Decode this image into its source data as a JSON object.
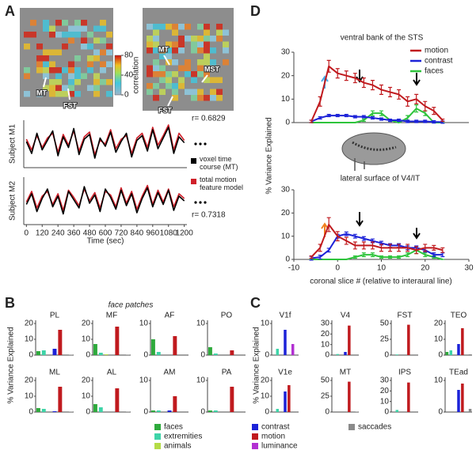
{
  "panel_labels": [
    "A",
    "D",
    "B",
    "C"
  ],
  "brain_labels": [
    "MT",
    "FST",
    "MT",
    "MST",
    "FST"
  ],
  "colorbar": {
    "label": "correlation",
    "lim": [
      0,
      80
    ],
    "ticks": [
      0,
      40,
      80
    ]
  },
  "face_patches_title": "face patches",
  "b_ylabel": "% Variance Explained",
  "c_ylabel": "% Variance Explained",
  "legend": {
    "items": [
      {
        "name": "faces",
        "color": "#2eaa3c"
      },
      {
        "name": "extremities",
        "color": "#3ed4a8"
      },
      {
        "name": "animals",
        "color": "#b4dc46"
      },
      {
        "name": "contrast",
        "color": "#1c22d8"
      },
      {
        "name": "motion",
        "color": "#c01a1e"
      },
      {
        "name": "luminance",
        "color": "#b230d2"
      },
      {
        "name": "saccades",
        "color": "#8a8a8a"
      }
    ]
  },
  "chart_data": [
    {
      "type": "line",
      "ylabel": "Subject M1",
      "annotation": "r= 0.6829",
      "xlim": [
        -20,
        1220
      ],
      "ylim": [
        -2,
        2
      ],
      "x": [
        0,
        40,
        80,
        120,
        160,
        200,
        240,
        280,
        320,
        360,
        400,
        440,
        480,
        520,
        560,
        600,
        640,
        680,
        720,
        760,
        800,
        840,
        880,
        920,
        960,
        1000,
        1040,
        1080,
        1120,
        1160,
        1200
      ],
      "series": [
        {
          "name": "voxel time course (MT)",
          "color": "#000000",
          "values": [
            0.2,
            -0.8,
            0.9,
            -0.5,
            0.3,
            1.1,
            -1.0,
            0.6,
            -0.3,
            1.3,
            -0.9,
            0.4,
            0.8,
            -1.2,
            0.5,
            -0.2,
            1.0,
            -0.7,
            0.2,
            0.9,
            -1.1,
            0.3,
            0.7,
            -0.6,
            1.2,
            -0.4,
            0.5,
            1.4,
            -0.8,
            0.6,
            0.1
          ]
        },
        {
          "name": "total motion feature model",
          "color": "#d0202a",
          "values": [
            0.4,
            -0.5,
            0.7,
            -0.3,
            0.5,
            0.9,
            -0.7,
            0.8,
            -0.1,
            1.1,
            -0.6,
            0.6,
            1.0,
            -0.9,
            0.3,
            0.0,
            1.2,
            -0.4,
            0.4,
            0.7,
            -0.8,
            0.5,
            0.9,
            -0.3,
            1.4,
            -0.1,
            0.7,
            1.6,
            -0.5,
            0.9,
            0.3
          ]
        }
      ]
    },
    {
      "type": "line",
      "ylabel": "Subject M2",
      "annotation": "r= 0.7318",
      "xlabel": "Time (sec)",
      "xlim": [
        -20,
        1220
      ],
      "ylim": [
        -2,
        2
      ],
      "xticks": [
        0,
        120,
        240,
        360,
        480,
        600,
        720,
        840,
        960,
        1080,
        1200
      ],
      "x": [
        0,
        40,
        80,
        120,
        160,
        200,
        240,
        280,
        320,
        360,
        400,
        440,
        480,
        520,
        560,
        600,
        640,
        680,
        720,
        760,
        800,
        840,
        880,
        920,
        960,
        1000,
        1040,
        1080,
        1120,
        1160,
        1200
      ],
      "series": [
        {
          "color": "#000000",
          "values": [
            -0.3,
            0.6,
            -0.9,
            0.2,
            1.0,
            -0.5,
            0.4,
            -1.1,
            0.8,
            0.1,
            -0.6,
            1.2,
            -0.2,
            0.5,
            -0.9,
            1.0,
            0.3,
            -0.7,
            0.9,
            -0.4,
            0.6,
            -1.0,
            0.2,
            1.1,
            -0.5,
            0.7,
            -0.3,
            0.9,
            -0.8,
            0.4,
            0.0
          ]
        },
        {
          "color": "#d0202a",
          "values": [
            -0.1,
            0.8,
            -0.6,
            0.4,
            0.8,
            -0.3,
            0.6,
            -0.8,
            0.9,
            0.3,
            -0.4,
            1.0,
            0.0,
            0.7,
            -0.6,
            0.8,
            0.5,
            -0.5,
            1.1,
            -0.2,
            0.8,
            -0.7,
            0.4,
            1.3,
            -0.3,
            0.9,
            -0.1,
            1.0,
            -0.5,
            0.6,
            0.2
          ]
        }
      ]
    },
    {
      "type": "line",
      "title": "ventral bank of the STS",
      "ylabel": "% Variance Explained",
      "legend": "upper right",
      "xlim": [
        -10,
        30
      ],
      "ylim": [
        0,
        30
      ],
      "yticks": [
        0,
        10,
        20,
        30
      ],
      "x": [
        -6,
        -4,
        -2,
        0,
        2,
        4,
        6,
        8,
        10,
        12,
        14,
        16,
        18,
        20,
        22,
        24
      ],
      "series": [
        {
          "name": "motion",
          "color": "#c01a1e",
          "values": [
            0.5,
            9,
            24,
            21,
            20,
            19,
            17,
            16,
            14,
            13,
            12,
            9,
            10,
            7,
            5,
            1
          ],
          "errors": [
            0.5,
            2,
            2.5,
            2,
            2,
            2,
            2,
            2,
            2,
            2,
            2,
            2,
            2,
            2,
            1.5,
            0.5
          ]
        },
        {
          "name": "contrast",
          "color": "#1c22d8",
          "values": [
            0.5,
            2,
            3,
            3,
            3,
            2.5,
            2.5,
            2,
            1.5,
            1,
            1,
            0.5,
            0.5,
            0.5,
            0.3,
            0.2
          ],
          "errors": [
            0.5,
            0.5,
            0.5,
            0.5,
            0.5,
            0.5,
            0.5,
            0.5,
            0.5,
            0.5,
            0.5,
            0.5,
            0.5,
            0.5,
            0.5,
            0.5
          ]
        },
        {
          "name": "faces",
          "color": "#2ec43c",
          "values": [
            0,
            0,
            0,
            0,
            0,
            0,
            1,
            4,
            4,
            1,
            0,
            2,
            6,
            4,
            0,
            0
          ],
          "errors": [
            0,
            0,
            0,
            0,
            0,
            0,
            0.5,
            1,
            1,
            0.5,
            0,
            1,
            1.5,
            1,
            0,
            0
          ]
        }
      ]
    },
    {
      "type": "line",
      "title": "lateral surface of V4/IT",
      "xlabel": "coronal slice # (relative to interaural line)",
      "xlim": [
        -10,
        30
      ],
      "ylim": [
        0,
        30
      ],
      "yticks": [
        0,
        10,
        20,
        30
      ],
      "xticks": [
        -10,
        0,
        10,
        20,
        30
      ],
      "x": [
        -6,
        -4,
        -2,
        0,
        2,
        4,
        6,
        8,
        10,
        12,
        14,
        16,
        18,
        20,
        22,
        24
      ],
      "series": [
        {
          "color": "#c01a1e",
          "values": [
            1,
            5,
            15,
            10,
            8,
            6,
            6,
            6,
            5,
            5,
            5,
            5,
            4,
            5,
            5,
            4
          ],
          "errors": [
            0.5,
            1.5,
            3,
            2,
            1.5,
            1.5,
            1.5,
            1.5,
            1.5,
            1.5,
            1.5,
            1.5,
            1.5,
            1.5,
            1,
            1
          ]
        },
        {
          "color": "#1c22d8",
          "values": [
            0.5,
            1,
            4,
            10,
            11,
            10,
            9,
            8,
            7,
            6,
            6,
            5,
            5,
            4,
            2,
            2
          ],
          "errors": [
            0.8,
            0.8,
            0.8,
            0.8,
            0.8,
            0.8,
            0.8,
            0.8,
            0.8,
            0.8,
            0.8,
            0.8,
            0.8,
            0.8,
            0.8,
            0.8
          ]
        },
        {
          "color": "#2ec43c",
          "values": [
            0,
            0,
            0,
            0,
            0,
            1,
            2,
            2,
            1,
            1,
            1,
            2,
            4,
            2,
            1,
            0
          ],
          "errors": [
            0,
            0,
            0,
            0,
            0,
            0.5,
            0.8,
            0.8,
            0.5,
            0.5,
            0.5,
            0.8,
            1.5,
            0.8,
            0.5,
            0
          ]
        }
      ]
    },
    {
      "type": "bar",
      "title": "PL",
      "categories": [
        null,
        null,
        null,
        null,
        null,
        null,
        null
      ],
      "values": [
        2.5,
        3,
        0,
        4,
        16,
        0,
        0.2
      ],
      "ylim": [
        0,
        22
      ],
      "yticks": [
        0,
        10,
        20
      ]
    },
    {
      "type": "bar",
      "title": "MF",
      "categories": [
        null,
        null,
        null,
        null,
        null,
        null,
        null
      ],
      "values": [
        7,
        1.5,
        0.5,
        0,
        18,
        0,
        0.3
      ],
      "ylim": [
        0,
        22
      ],
      "yticks": [
        0,
        10,
        20
      ]
    },
    {
      "type": "bar",
      "title": "AF",
      "categories": [
        null,
        null,
        null,
        null,
        null,
        null,
        null
      ],
      "values": [
        5,
        1,
        0,
        0,
        6,
        0,
        0.2
      ],
      "ylim": [
        0,
        11
      ],
      "yticks": [
        0,
        10
      ]
    },
    {
      "type": "bar",
      "title": "PO",
      "categories": [
        null,
        null,
        null,
        null,
        null,
        null,
        null
      ],
      "values": [
        2.5,
        0.5,
        0,
        0,
        1.5,
        0,
        0
      ],
      "ylim": [
        0,
        11
      ],
      "yticks": [
        0,
        10
      ]
    },
    {
      "type": "bar",
      "title": "ML",
      "categories": [
        null,
        null,
        null,
        null,
        null,
        null,
        null
      ],
      "values": [
        2.5,
        2,
        0,
        0.5,
        16,
        0,
        0.2
      ],
      "ylim": [
        0,
        22
      ],
      "yticks": [
        0,
        10,
        20
      ]
    },
    {
      "type": "bar",
      "title": "AL",
      "categories": [
        null,
        null,
        null,
        null,
        null,
        null,
        null
      ],
      "values": [
        5,
        3,
        0,
        0,
        15,
        0,
        0.2
      ],
      "ylim": [
        0,
        22
      ],
      "yticks": [
        0,
        10,
        20
      ]
    },
    {
      "type": "bar",
      "title": "AM",
      "categories": [
        null,
        null,
        null,
        null,
        null,
        null,
        null
      ],
      "values": [
        0.5,
        0.5,
        0,
        0.5,
        5,
        0,
        0
      ],
      "ylim": [
        0,
        11
      ],
      "yticks": [
        0,
        10
      ]
    },
    {
      "type": "bar",
      "title": "PA",
      "categories": [
        null,
        null,
        null,
        null,
        null,
        null,
        null
      ],
      "values": [
        0.5,
        0.5,
        0,
        0,
        8,
        0,
        0
      ],
      "ylim": [
        0,
        11
      ],
      "yticks": [
        0,
        10
      ]
    },
    {
      "type": "bar",
      "title": "V1f",
      "categories": [
        null,
        null,
        null,
        null,
        null,
        null,
        null
      ],
      "values": [
        0,
        2,
        0,
        8,
        0,
        3.5,
        0
      ],
      "ylim": [
        0,
        11
      ],
      "yticks": [
        0,
        10
      ]
    },
    {
      "type": "bar",
      "title": "V4",
      "categories": [
        null,
        null,
        null,
        null,
        null,
        null,
        null
      ],
      "values": [
        0,
        1,
        0,
        3,
        28,
        0,
        0
      ],
      "ylim": [
        0,
        33
      ],
      "yticks": [
        0,
        10,
        20,
        30
      ]
    },
    {
      "type": "bar",
      "title": "FST",
      "categories": [
        null,
        null,
        null,
        null,
        null,
        null,
        null
      ],
      "values": [
        0,
        1,
        0,
        0,
        48,
        0,
        0
      ],
      "ylim": [
        0,
        55
      ],
      "yticks": [
        0,
        25,
        50
      ]
    },
    {
      "type": "bar",
      "title": "TEO",
      "categories": [
        null,
        null,
        null,
        null,
        null,
        null,
        null
      ],
      "values": [
        2,
        3,
        0,
        7,
        17,
        0,
        0.5
      ],
      "ylim": [
        0,
        22
      ],
      "yticks": [
        0,
        10,
        20
      ]
    },
    {
      "type": "bar",
      "title": "V1e",
      "categories": [
        null,
        null,
        null,
        null,
        null,
        null,
        null
      ],
      "values": [
        0,
        2,
        0,
        13,
        17,
        0,
        0
      ],
      "ylim": [
        0,
        22
      ],
      "yticks": [
        0,
        10,
        20
      ]
    },
    {
      "type": "bar",
      "title": "MT",
      "categories": [
        null,
        null,
        null,
        null,
        null,
        null,
        null
      ],
      "values": [
        0,
        0,
        0,
        0,
        48,
        0,
        0.5
      ],
      "ylim": [
        0,
        55
      ],
      "yticks": [
        0,
        25,
        50
      ]
    },
    {
      "type": "bar",
      "title": "IPS",
      "categories": [
        null,
        null,
        null,
        null,
        null,
        null,
        null
      ],
      "values": [
        0,
        2,
        0,
        0,
        28,
        0,
        0
      ],
      "ylim": [
        0,
        33
      ],
      "yticks": [
        0,
        10,
        20,
        30
      ]
    },
    {
      "type": "bar",
      "title": "TEad",
      "categories": [
        null,
        null,
        null,
        null,
        null,
        null,
        null
      ],
      "values": [
        0,
        0,
        0,
        7,
        9,
        0,
        1
      ],
      "ylim": [
        0,
        11
      ],
      "yticks": [
        0,
        10
      ]
    }
  ]
}
